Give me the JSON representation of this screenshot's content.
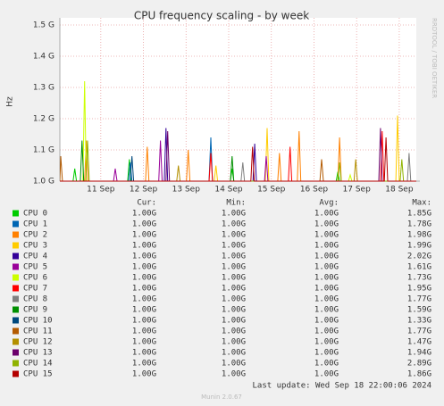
{
  "chart_data": {
    "type": "line",
    "title": "CPU frequency scaling - by week",
    "y_label": "Hz",
    "side_text": "RRDTOOL / TOBI OETIKER",
    "footer": "Last update: Wed Sep 18 22:00:06 2024",
    "version": "Munin 2.0.67",
    "legend_headers": [
      "Cur:",
      "Min:",
      "Avg:",
      "Max:"
    ],
    "xlim": [
      0.04,
      8.4
    ],
    "xticks": [
      {
        "value": 1,
        "label": "11 Sep"
      },
      {
        "value": 2,
        "label": "12 Sep"
      },
      {
        "value": 3,
        "label": "13 Sep"
      },
      {
        "value": 4,
        "label": "14 Sep"
      },
      {
        "value": 5,
        "label": "15 Sep"
      },
      {
        "value": 6,
        "label": "16 Sep"
      },
      {
        "value": 7,
        "label": "17 Sep"
      },
      {
        "value": 8,
        "label": "18 Sep"
      }
    ],
    "ylim": [
      1.0,
      1.5
    ],
    "yticks": [
      {
        "value": 1.0,
        "label": "1.0 G"
      },
      {
        "value": 1.1,
        "label": "1.1 G"
      },
      {
        "value": 1.2,
        "label": "1.2 G"
      },
      {
        "value": 1.3,
        "label": "1.3 G"
      },
      {
        "value": 1.4,
        "label": "1.4 G"
      },
      {
        "value": 1.5,
        "label": "1.5 G"
      }
    ],
    "grid": true,
    "series": [
      {
        "name": "CPU 0",
        "color": "#00cc00",
        "x": [
          0.04,
          0.35,
          0.39,
          0.43,
          1.63,
          1.67,
          1.71,
          4.04,
          4.08,
          4.12,
          6.52,
          6.56,
          6.6,
          8.4
        ],
        "values": [
          1,
          1,
          1.04,
          1,
          1,
          1.07,
          1,
          1,
          1.04,
          1,
          1,
          1.03,
          1,
          1
        ],
        "stats": [
          "1.00G",
          "1.00G",
          "1.00G",
          "1.85G"
        ]
      },
      {
        "name": "CPU 1",
        "color": "#0066b3",
        "x": [
          0.04,
          1.65,
          1.69,
          1.73,
          3.54,
          3.58,
          3.62,
          8.4
        ],
        "values": [
          1,
          1,
          1.06,
          1,
          1,
          1.14,
          1,
          1
        ],
        "stats": [
          "1.00G",
          "1.00G",
          "1.00G",
          "1.78G"
        ]
      },
      {
        "name": "CPU 2",
        "color": "#ff8000",
        "x": [
          0.04,
          0.62,
          0.66,
          0.7,
          2.05,
          2.09,
          2.13,
          3.01,
          3.05,
          3.09,
          5.15,
          5.19,
          5.23,
          5.61,
          5.65,
          5.69,
          6.56,
          6.6,
          6.64,
          8.4
        ],
        "values": [
          1,
          1,
          1.13,
          1,
          1,
          1.11,
          1,
          1,
          1.1,
          1,
          1,
          1.09,
          1,
          1,
          1.16,
          1,
          1,
          1.14,
          1,
          1
        ],
        "stats": [
          "1.00G",
          "1.00G",
          "1.00G",
          "1.98G"
        ]
      },
      {
        "name": "CPU 3",
        "color": "#ffcc00",
        "x": [
          0.04,
          3.66,
          3.7,
          3.74,
          4.86,
          4.9,
          4.94,
          7.92,
          7.96,
          8.0,
          8.4
        ],
        "values": [
          1,
          1,
          1.05,
          1,
          1,
          1.17,
          1,
          1,
          1.21,
          1,
          1
        ],
        "stats": [
          "1.00G",
          "1.00G",
          "1.00G",
          "1.99G"
        ]
      },
      {
        "name": "CPU 4",
        "color": "#330099",
        "x": [
          0.04,
          2.49,
          2.53,
          2.57,
          4.57,
          4.61,
          4.65,
          8.4
        ],
        "values": [
          1,
          1,
          1.17,
          1,
          1,
          1.12,
          1,
          1
        ],
        "stats": [
          "1.00G",
          "1.00G",
          "1.00G",
          "2.02G"
        ]
      },
      {
        "name": "CPU 5",
        "color": "#990099",
        "x": [
          0.04,
          1.3,
          1.34,
          1.38,
          2.36,
          2.4,
          2.44,
          4.84,
          4.88,
          4.92,
          8.4
        ],
        "values": [
          1,
          1,
          1.04,
          1,
          1,
          1.13,
          1,
          1,
          1.08,
          1,
          1
        ],
        "stats": [
          "1.00G",
          "1.00G",
          "1.00G",
          "1.61G"
        ]
      },
      {
        "name": "CPU 6",
        "color": "#ccff00",
        "x": [
          0.04,
          0.58,
          0.62,
          0.66,
          6.81,
          6.85,
          6.89,
          8.4
        ],
        "values": [
          1,
          1,
          1.32,
          1,
          1,
          1.02,
          1,
          1
        ],
        "stats": [
          "1.00G",
          "1.00G",
          "1.00G",
          "1.73G"
        ]
      },
      {
        "name": "CPU 7",
        "color": "#ff0000",
        "x": [
          0.04,
          3.54,
          3.58,
          3.62,
          5.4,
          5.44,
          5.48,
          7.56,
          7.6,
          7.64,
          8.4
        ],
        "values": [
          1,
          1,
          1.09,
          1,
          1,
          1.11,
          1,
          1,
          1.16,
          1,
          1
        ],
        "stats": [
          "1.00G",
          "1.00G",
          "1.00G",
          "1.95G"
        ]
      },
      {
        "name": "CPU 8",
        "color": "#808080",
        "x": [
          0.04,
          4.29,
          4.33,
          4.37,
          8.19,
          8.23,
          8.27,
          8.4
        ],
        "values": [
          1,
          1,
          1.06,
          1,
          1,
          1.09,
          1,
          1
        ],
        "stats": [
          "1.00G",
          "1.00G",
          "1.00G",
          "1.77G"
        ]
      },
      {
        "name": "CPU 9",
        "color": "#008f00",
        "x": [
          0.04,
          0.52,
          0.56,
          0.6,
          4.04,
          4.08,
          4.12,
          8.4
        ],
        "values": [
          1,
          1,
          1.13,
          1,
          1,
          1.08,
          1,
          1
        ],
        "stats": [
          "1.00G",
          "1.00G",
          "1.00G",
          "1.59G"
        ]
      },
      {
        "name": "CPU 10",
        "color": "#00487d",
        "x": [
          0.04,
          1.69,
          1.73,
          1.77,
          8.4
        ],
        "values": [
          1,
          1,
          1.08,
          1,
          1
        ],
        "stats": [
          "1.00G",
          "1.00G",
          "1.00G",
          "1.33G"
        ]
      },
      {
        "name": "CPU 11",
        "color": "#b35a00",
        "x": [
          0.04,
          0.06,
          0.1,
          6.14,
          6.18,
          6.22,
          8.4
        ],
        "values": [
          1,
          1.08,
          1,
          1,
          1.07,
          1,
          1
        ],
        "stats": [
          "1.00G",
          "1.00G",
          "1.00G",
          "1.77G"
        ]
      },
      {
        "name": "CPU 12",
        "color": "#b38f00",
        "x": [
          0.04,
          2.78,
          2.82,
          2.86,
          6.94,
          6.98,
          7.02,
          8.4
        ],
        "values": [
          1,
          1,
          1.05,
          1,
          1,
          1.07,
          1,
          1
        ],
        "stats": [
          "1.00G",
          "1.00G",
          "1.00G",
          "1.47G"
        ]
      },
      {
        "name": "CPU 13",
        "color": "#6b006b",
        "x": [
          0.04,
          2.53,
          2.57,
          2.61,
          7.52,
          7.56,
          7.6,
          8.4
        ],
        "values": [
          1,
          1,
          1.16,
          1,
          1,
          1.17,
          1,
          1
        ],
        "stats": [
          "1.00G",
          "1.00G",
          "1.00G",
          "1.94G"
        ]
      },
      {
        "name": "CPU 14",
        "color": "#8fb300",
        "x": [
          0.04,
          0.65,
          0.69,
          0.73,
          6.56,
          6.6,
          6.64,
          8.02,
          8.06,
          8.1,
          8.4
        ],
        "values": [
          1,
          1,
          1.13,
          1,
          1,
          1.06,
          1,
          1,
          1.07,
          1,
          1
        ],
        "stats": [
          "1.00G",
          "1.00G",
          "1.00G",
          "2.89G"
        ]
      },
      {
        "name": "CPU 15",
        "color": "#b30000",
        "x": [
          0.04,
          4.52,
          4.56,
          4.6,
          7.65,
          7.69,
          7.73,
          8.4
        ],
        "values": [
          1,
          1,
          1.11,
          1,
          1,
          1.14,
          1,
          1
        ],
        "stats": [
          "1.00G",
          "1.00G",
          "1.00G",
          "1.86G"
        ]
      }
    ]
  }
}
